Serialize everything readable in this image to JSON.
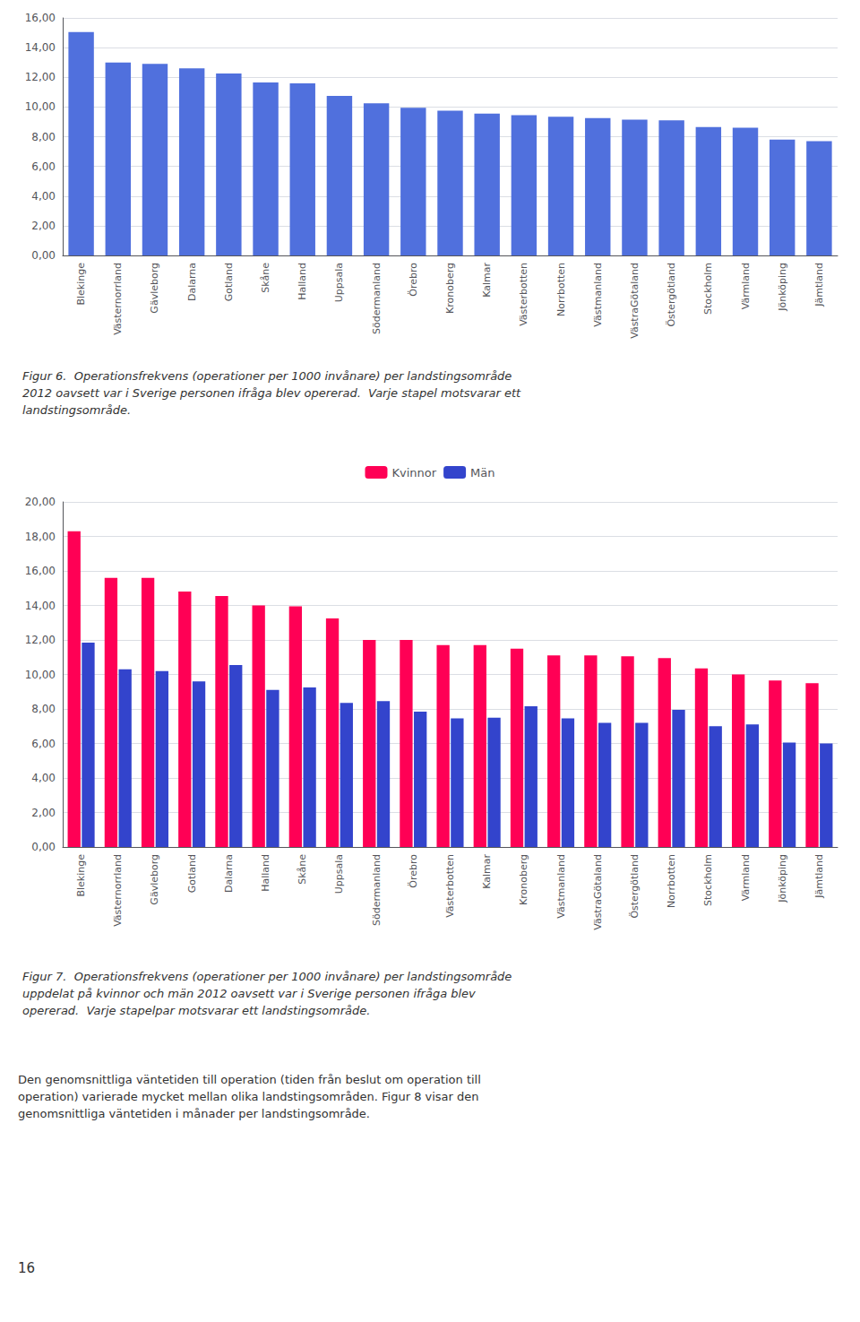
{
  "chart_data": [
    {
      "type": "bar",
      "title": "Figur 6.  Operationsfrekvens (operationer per 1000 invånare) per landstingsområde\n2012 oavsett var i Sverige personen ifråga blev opererad.  Varje stapel motsvarar ett\nlandstingsområde.",
      "categories": [
        "Blekinge",
        "Västernorrland",
        "Gävleborg",
        "Dalarna",
        "Gotland",
        "Skåne",
        "Halland",
        "Uppsala",
        "Södermanland",
        "Örebro",
        "Kronoberg",
        "Kalmar",
        "Västerbotten",
        "Norrbotten",
        "Västmanland",
        "VästraGötaland",
        "Östergötland",
        "Stockholm",
        "Värmland",
        "Jönköping",
        "Jämtland"
      ],
      "values": [
        15.05,
        13.0,
        12.9,
        12.6,
        12.25,
        11.65,
        11.6,
        10.75,
        10.25,
        9.95,
        9.75,
        9.55,
        9.45,
        9.35,
        9.25,
        9.15,
        9.1,
        8.65,
        8.6,
        7.8,
        7.7
      ],
      "ylim": [
        0,
        16
      ],
      "yticks": [
        {
          "value": 0,
          "label": "0,00"
        },
        {
          "value": 2,
          "label": "2,00"
        },
        {
          "value": 4,
          "label": "4,00"
        },
        {
          "value": 6,
          "label": "6,00"
        },
        {
          "value": 8,
          "label": "8,00"
        },
        {
          "value": 10,
          "label": "10,00"
        },
        {
          "value": 12,
          "label": "12,00"
        },
        {
          "value": 14,
          "label": "14,00"
        },
        {
          "value": 16,
          "label": "16,00"
        }
      ],
      "grid": true
    },
    {
      "type": "bar",
      "title": "Figur 7.  Operationsfrekvens (operationer per 1000 invånare) per landstingsområde\nuppdelat på kvinnor och män 2012 oavsett var i Sverige personen ifråga blev\nopererad.  Varje stapelpar motsvarar ett landstingsområde.",
      "categories": [
        "Blekinge",
        "Västernorrland",
        "Gävleborg",
        "Gotland",
        "Dalarna",
        "Halland",
        "Skåne",
        "Uppsala",
        "Södermanland",
        "Örebro",
        "Västerbotten",
        "Kalmar",
        "Kronoberg",
        "Västmanland",
        "VästraGötaland",
        "Östergötland",
        "Norrbotten",
        "Stockholm",
        "Värmland",
        "Jönköping",
        "Jämtland"
      ],
      "series": [
        {
          "name": "Kvinnor",
          "color": "#ff0055",
          "values": [
            18.3,
            15.6,
            15.6,
            14.8,
            14.55,
            14.0,
            13.95,
            13.25,
            12.0,
            12.0,
            11.7,
            11.7,
            11.5,
            11.1,
            11.1,
            11.05,
            10.95,
            10.35,
            10.0,
            9.65,
            9.5
          ]
        },
        {
          "name": "Män",
          "color": "#3344cc",
          "values": [
            11.85,
            10.3,
            10.2,
            9.6,
            10.55,
            9.1,
            9.25,
            8.35,
            8.45,
            7.85,
            7.45,
            7.5,
            8.15,
            7.45,
            7.2,
            7.2,
            7.95,
            7.0,
            7.1,
            6.05,
            6.0
          ]
        }
      ],
      "ylim": [
        0,
        20
      ],
      "yticks": [
        {
          "value": 0,
          "label": "0,00"
        },
        {
          "value": 2,
          "label": "2,00"
        },
        {
          "value": 4,
          "label": "4,00"
        },
        {
          "value": 6,
          "label": "6,00"
        },
        {
          "value": 8,
          "label": "8,00"
        },
        {
          "value": 10,
          "label": "10,00"
        },
        {
          "value": 12,
          "label": "12,00"
        },
        {
          "value": 14,
          "label": "14,00"
        },
        {
          "value": 16,
          "label": "16,00"
        },
        {
          "value": 18,
          "label": "18,00"
        },
        {
          "value": 20,
          "label": "20,00"
        }
      ],
      "grid": true,
      "legend": "top",
      "annotations": [
        "Den genomsnittliga väntetiden till operation (tiden från beslut om operation till\noperation) varierade mycket mellan olika landstingsområden. Figur 8 visar den\ngenomsnittliga väntetiden i månader per landstingsområde.",
        "16"
      ]
    }
  ]
}
